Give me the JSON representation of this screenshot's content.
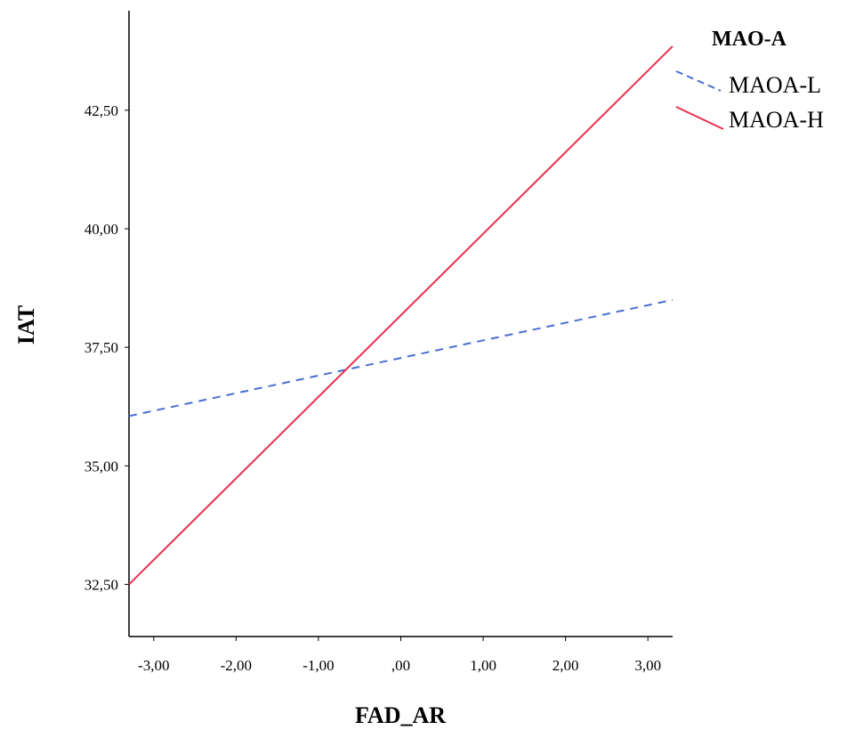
{
  "chart_data": {
    "type": "line",
    "xlabel": "FAD_AR",
    "ylabel": "IAT",
    "xlim": [
      -3.3,
      3.3
    ],
    "ylim": [
      31.4,
      44.6
    ],
    "xticks": [
      -3,
      -2,
      -1,
      0,
      1,
      2,
      3
    ],
    "xtick_labels": [
      "-3,00",
      "-2,00",
      "-1,00",
      ",00",
      "1,00",
      "2,00",
      "3,00"
    ],
    "yticks": [
      32.5,
      35,
      37.5,
      40,
      42.5
    ],
    "ytick_labels": [
      "32,50",
      "35,00",
      "37,50",
      "40,00",
      "42,50"
    ],
    "grid": false,
    "legend": {
      "title": "MAO-A",
      "placement": "right"
    },
    "series": [
      {
        "name": "MAOA-L",
        "x": [
          -3.3,
          3.3
        ],
        "y": [
          36.05,
          38.5
        ],
        "color": "#4a6fd1",
        "style": "dashed"
      },
      {
        "name": "MAOA-H",
        "x": [
          -3.3,
          3.3
        ],
        "y": [
          32.5,
          43.85
        ],
        "color": "#e8314f",
        "style": "solid"
      }
    ]
  }
}
